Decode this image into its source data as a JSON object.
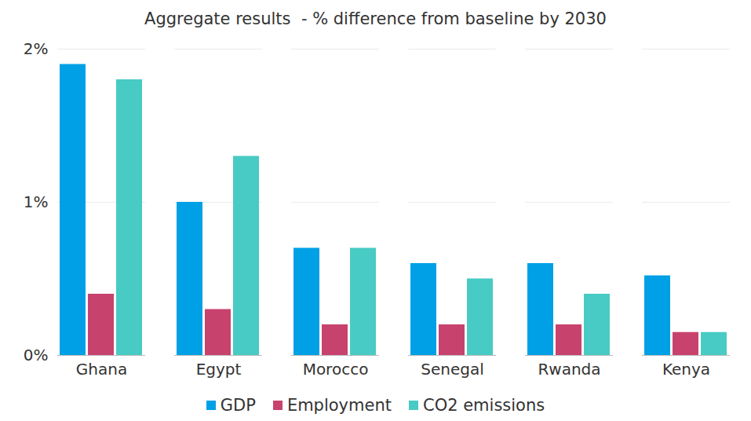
{
  "chart_data": {
    "type": "bar",
    "title": "Aggregate results  - % difference from baseline by 2030",
    "categories": [
      "Ghana",
      "Egypt",
      "Morocco",
      "Senegal",
      "Rwanda",
      "Kenya"
    ],
    "series": [
      {
        "name": "GDP",
        "color": "#00a0e6",
        "values": [
          1.9,
          1.0,
          0.7,
          0.6,
          0.6,
          0.52
        ]
      },
      {
        "name": "Employment",
        "color": "#c8426e",
        "values": [
          0.4,
          0.3,
          0.2,
          0.2,
          0.2,
          0.15
        ]
      },
      {
        "name": "CO2 emissions",
        "color": "#48cbc4",
        "values": [
          1.8,
          1.3,
          0.7,
          0.5,
          0.4,
          0.15
        ]
      }
    ],
    "ylim": [
      0,
      2
    ],
    "yticks": [
      {
        "value": 0,
        "label": "0%"
      },
      {
        "value": 1,
        "label": "1%"
      },
      {
        "value": 2,
        "label": "2%"
      }
    ],
    "grid": true,
    "legend": "bottom"
  }
}
